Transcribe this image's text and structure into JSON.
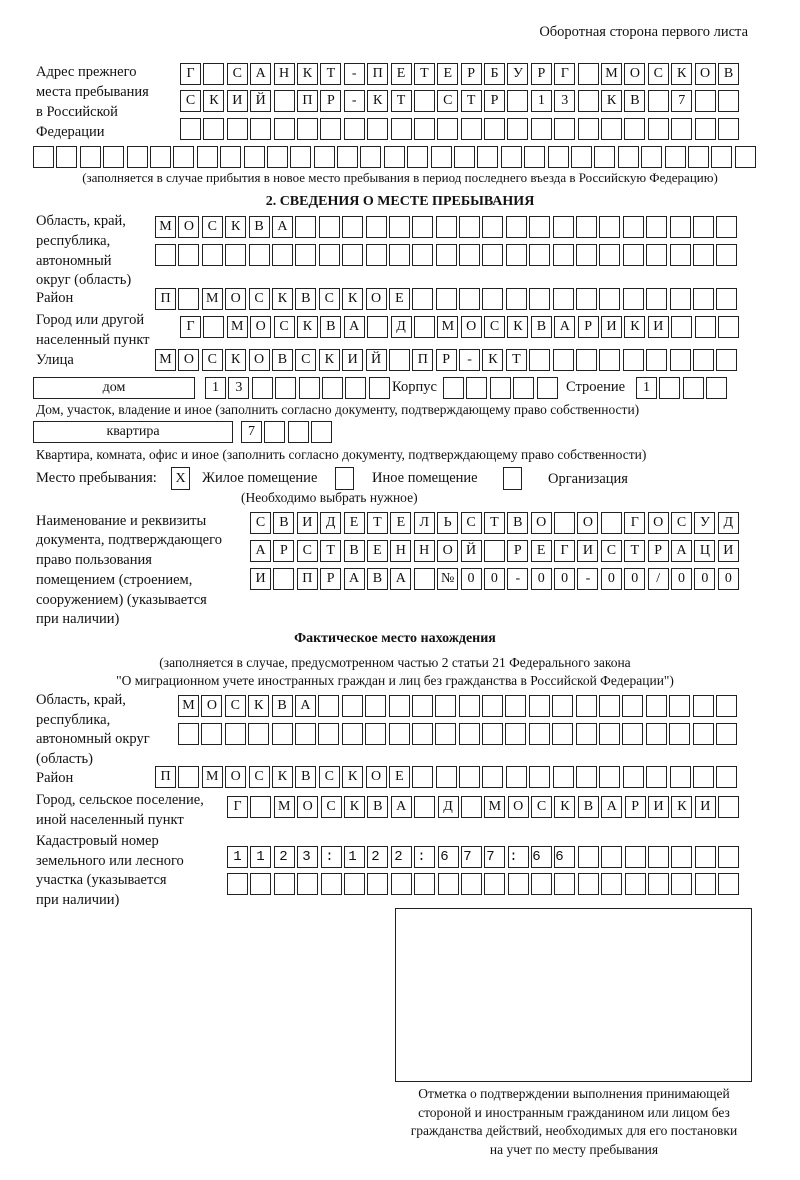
{
  "header_note": "Оборотная сторона первого листа",
  "prev_address": {
    "label": [
      "Адрес прежнего",
      "места пребывания",
      "в Российской",
      "Федерации"
    ],
    "rows": [
      "Г САНКТ-ПЕТЕРБУРГ МОСКОВ",
      "СКИЙ ПР-КТ СТР 13 КВ 7",
      "",
      ""
    ],
    "note": "(заполняется в случае прибытия в новое место пребывания в период последнего въезда в Российскую Федерацию)"
  },
  "section2": {
    "title": "2. СВЕДЕНИЯ О МЕСТЕ ПРЕБЫВАНИЯ",
    "region_label": [
      "Область, край,",
      "республика,",
      "автономный",
      "округ (область)"
    ],
    "region_rows": [
      "МОСКВА",
      ""
    ],
    "district_label": "Район",
    "district": "П МОСКВСКОЕ",
    "city_label": [
      "Город или другой",
      "населенный пункт"
    ],
    "city": "Г МОСКВА Д МОСКВАРИКИ",
    "street_label": "Улица",
    "street": "МОСКОВСКИЙ ПР-КТ",
    "house_type": "дом",
    "house_number": "13",
    "korpus_label": "Корпус",
    "korpus": "",
    "building_label": "Строение",
    "building": "1",
    "house_note": "Дом, участок, владение и иное (заполнить согласно документу, подтверждающему право собственности)",
    "apt_type": "квартира",
    "apt_number": "7",
    "apt_note": "Квартира, комната, офис и иное (заполнить согласно документу, подтверждающему право собственности)",
    "place_label": "Место пребывания:",
    "place_options": [
      {
        "label": "Жилое помещение",
        "mark": "X"
      },
      {
        "label": "Иное помещение",
        "mark": ""
      },
      {
        "label": "Организация",
        "mark": ""
      }
    ],
    "place_note": "(Необходимо выбрать нужное)",
    "doc_label": [
      "Наименование и реквизиты",
      "документа, подтверждающего",
      "право пользования",
      "помещением (строением,",
      "сооружением) (указывается",
      "при наличии)"
    ],
    "doc_rows": [
      "СВИДЕТЕЛЬСТВО О ГОСУД",
      "АРСТВЕННОЙ РЕГИСТРАЦИ",
      "И ПРАВА №00-00-00/000"
    ]
  },
  "actual": {
    "title": "Фактическое место нахождения",
    "note": [
      "(заполняется в случае, предусмотренном частью 2 статьи 21 Федерального закона",
      "\"О миграционном учете иностранных граждан и лиц без гражданства в Российской Федерации\")"
    ],
    "region_label": [
      "Область, край,",
      "республика,",
      "автономный округ",
      "(область)"
    ],
    "region_rows": [
      "МОСКВА",
      ""
    ],
    "district_label": "Район",
    "district": "П МОСКВСКОЕ",
    "city_label": [
      "Город, сельское поселение,",
      "иной населенный пункт"
    ],
    "city": "Г МОСКВА Д МОСКВАРИКИ",
    "cadastral_label": [
      "Кадастровый номер",
      "земельного или лесного",
      "участка (указывается",
      "при наличии)"
    ],
    "cadastral_rows": [
      "1123:122:677:66",
      ""
    ]
  },
  "stamp_caption": [
    "Отметка о подтверждении выполнения принимающей",
    "стороной и иностранным гражданином или лицом без",
    "гражданства действий, необходимых для его постановки",
    "на учет по месту пребывания"
  ]
}
